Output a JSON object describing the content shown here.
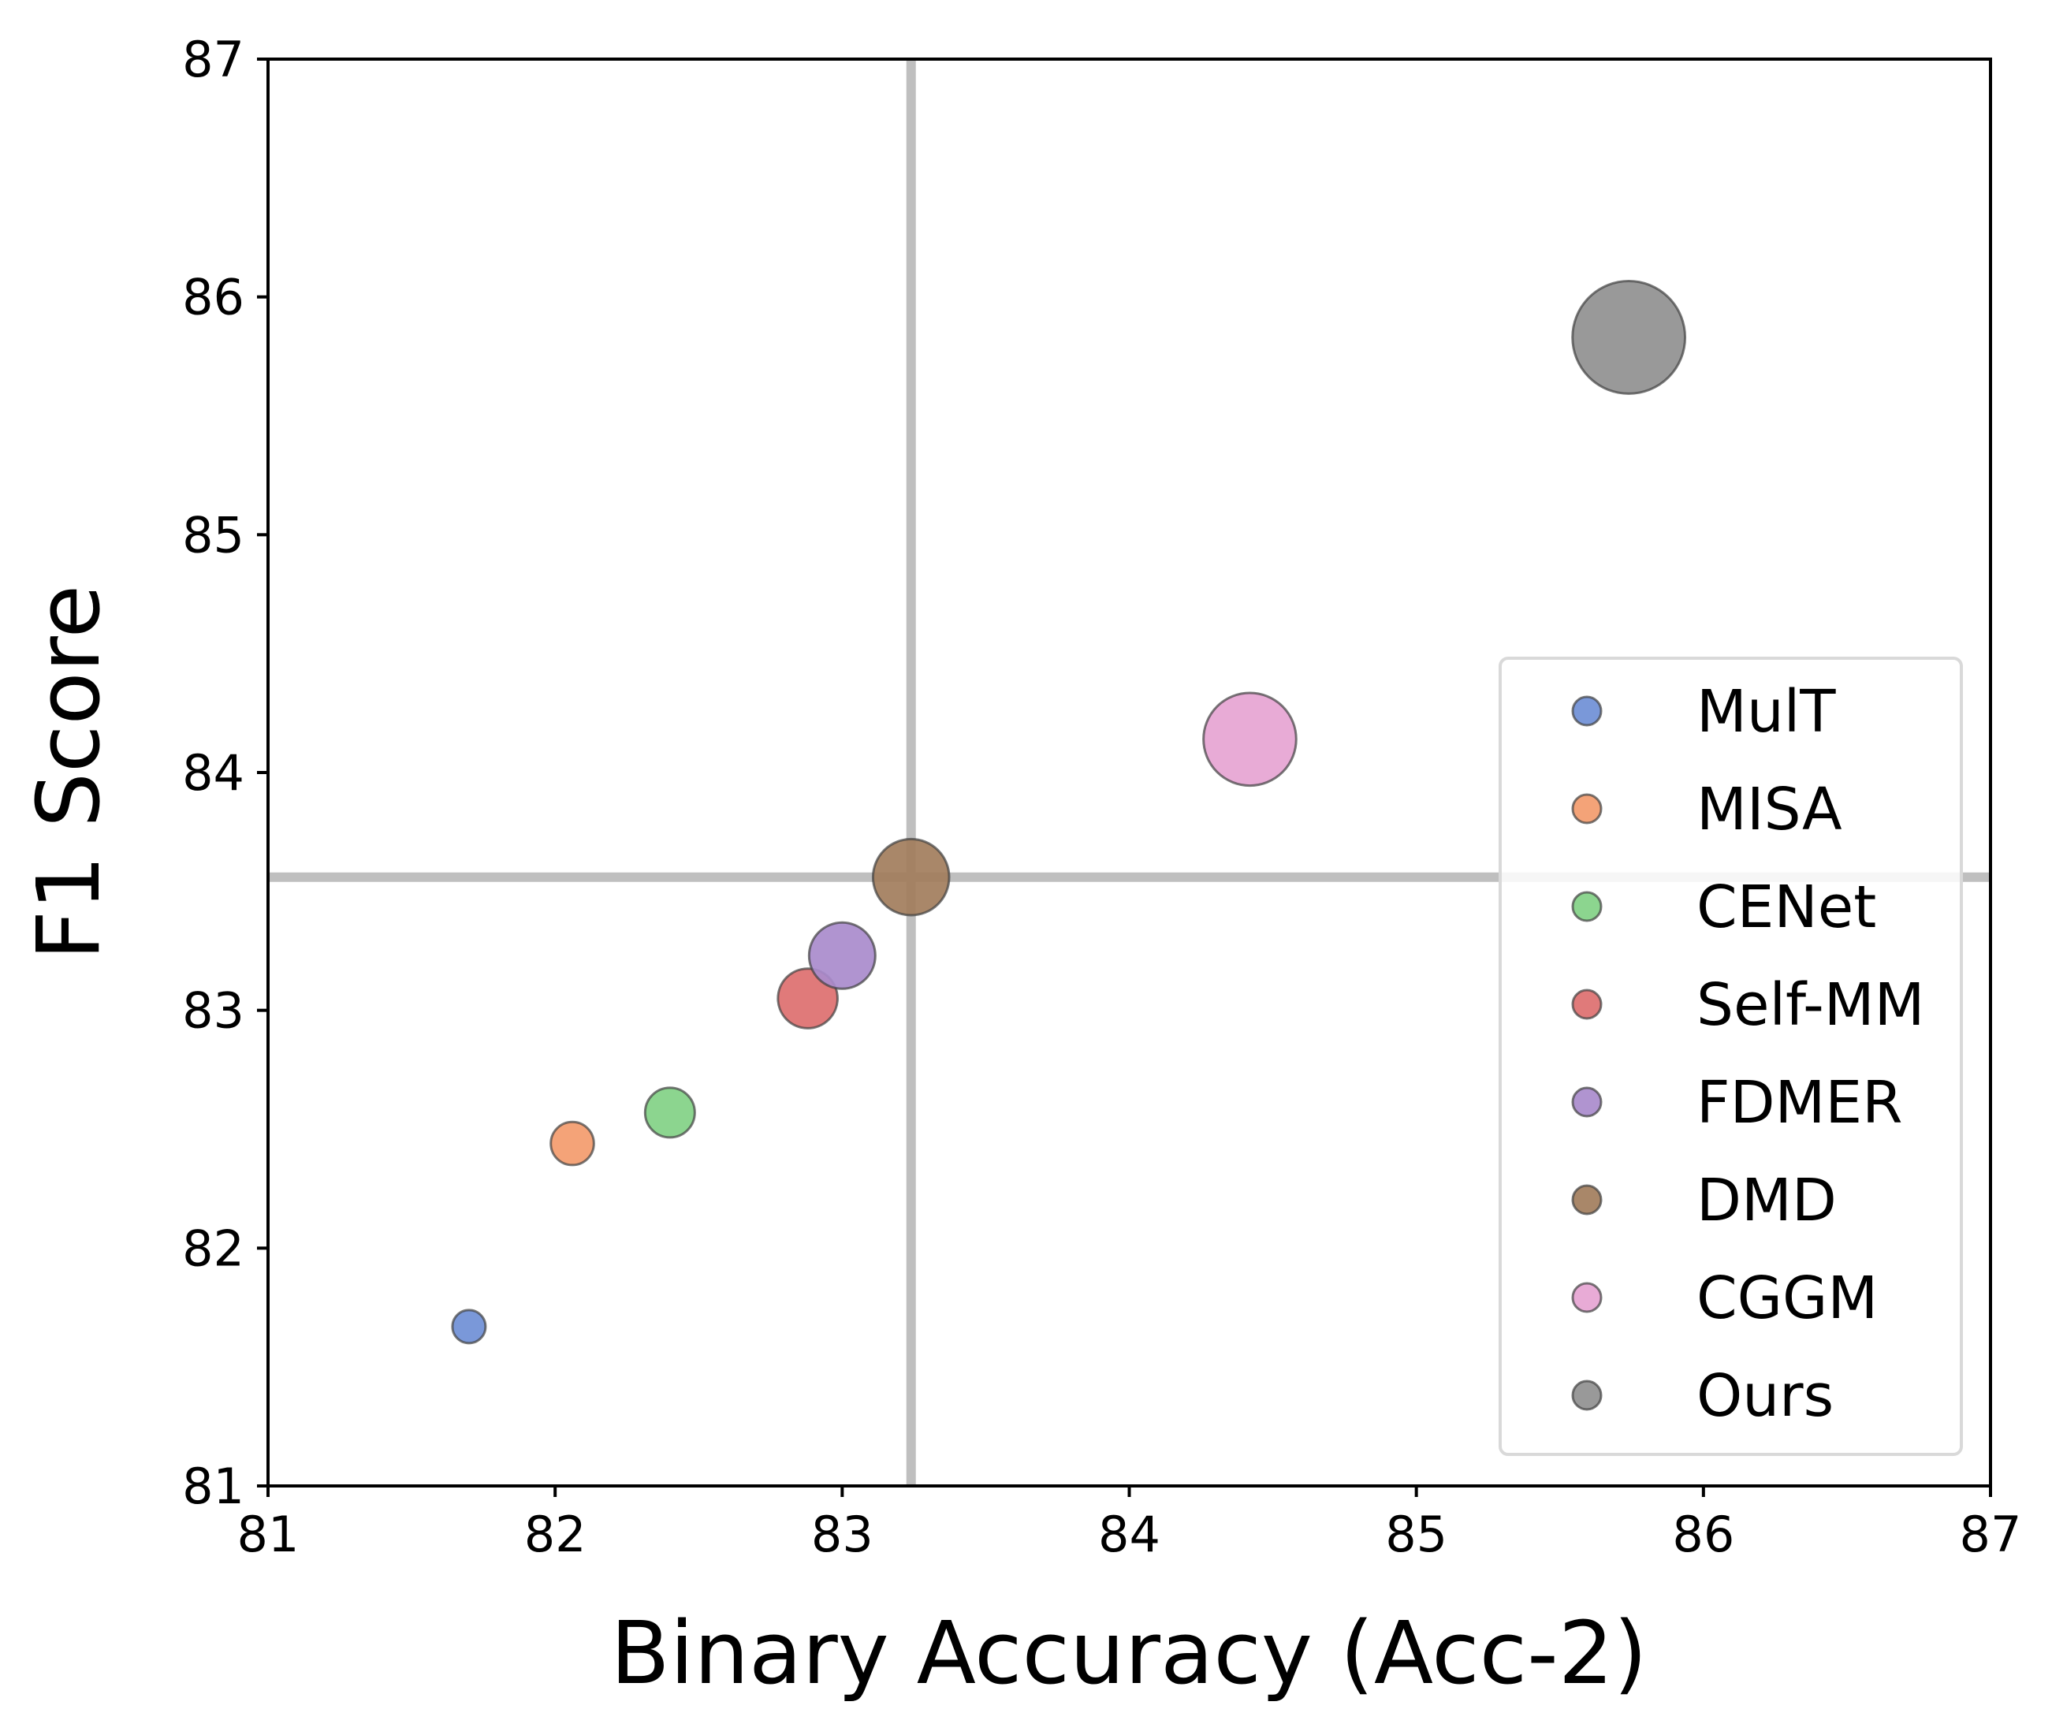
{
  "chart_data": {
    "type": "scatter",
    "title": "",
    "xlabel": "Binary Accuracy (Acc-2)",
    "ylabel": "F1 Score",
    "xlim": [
      81,
      87
    ],
    "ylim": [
      81,
      87
    ],
    "xticks": [
      "81",
      "82",
      "83",
      "84",
      "85",
      "86",
      "87"
    ],
    "yticks": [
      "81",
      "82",
      "83",
      "84",
      "85",
      "86",
      "87"
    ],
    "grid": false,
    "legend_position": "lower-right",
    "reference_lines": {
      "x": 83.24,
      "y": 83.56,
      "color": "#bfbfbf"
    },
    "series": [
      {
        "name": "MulT",
        "x": 81.7,
        "y": 81.67,
        "size": 1.0,
        "color": "#6f8fd6"
      },
      {
        "name": "MISA",
        "x": 82.06,
        "y": 82.44,
        "size": 1.3,
        "color": "#f39b6d"
      },
      {
        "name": "CENet",
        "x": 82.4,
        "y": 82.57,
        "size": 1.5,
        "color": "#82d185"
      },
      {
        "name": "Self-MM",
        "x": 82.88,
        "y": 83.05,
        "size": 1.8,
        "color": "#dd6f6f"
      },
      {
        "name": "FDMER",
        "x": 83.0,
        "y": 83.23,
        "size": 2.0,
        "color": "#a98bcc"
      },
      {
        "name": "DMD",
        "x": 83.24,
        "y": 83.56,
        "size": 2.3,
        "color": "#a27d5c"
      },
      {
        "name": "CGGM",
        "x": 84.42,
        "y": 84.14,
        "size": 2.8,
        "color": "#e6a4d2"
      },
      {
        "name": "Ours",
        "x": 85.74,
        "y": 85.83,
        "size": 3.4,
        "color": "#909090"
      }
    ]
  }
}
